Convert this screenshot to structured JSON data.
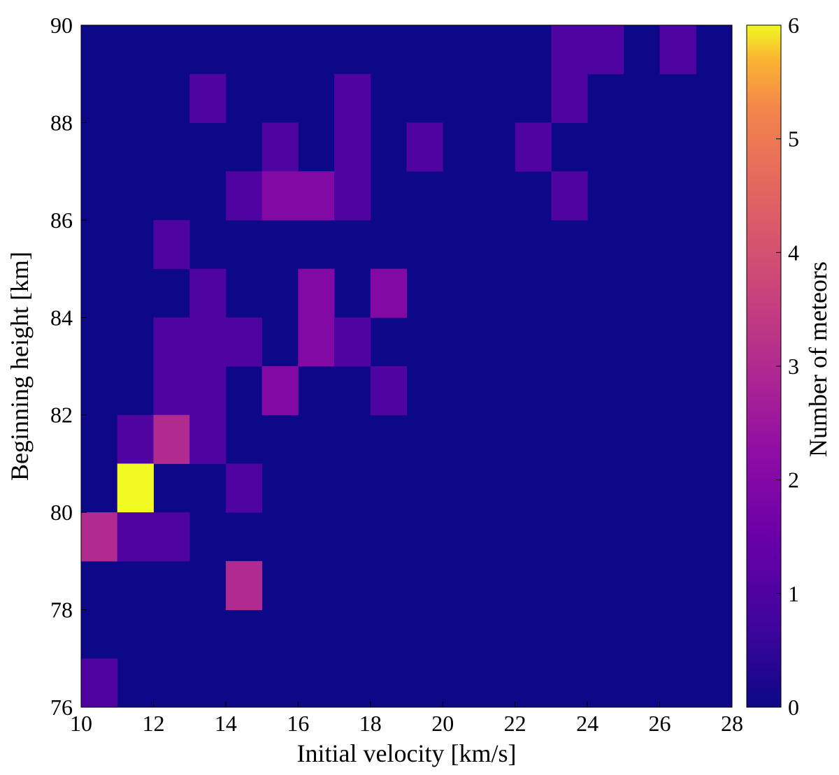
{
  "chart_data": {
    "type": "heatmap",
    "title": "",
    "xlabel": "Initial velocity [km/s]",
    "ylabel": "Beginning height [km]",
    "colorbar_label": "Number of meteors",
    "xlim": [
      10,
      28
    ],
    "ylim": [
      76,
      90
    ],
    "bin_width_x": 1,
    "bin_height_y": 1,
    "x_ticks": [
      "10",
      "12",
      "14",
      "16",
      "18",
      "20",
      "22",
      "24",
      "26",
      "28"
    ],
    "y_ticks": [
      "76",
      "78",
      "80",
      "82",
      "84",
      "86",
      "88",
      "90"
    ],
    "colorbar_ticks": [
      "0",
      "1",
      "2",
      "3",
      "4",
      "5",
      "6"
    ],
    "colorbar_range": [
      0,
      6
    ],
    "colormap": "plasma",
    "cells": [
      {
        "x": 23,
        "y": 89,
        "count": 1
      },
      {
        "x": 24,
        "y": 89,
        "count": 1
      },
      {
        "x": 26,
        "y": 89,
        "count": 1
      },
      {
        "x": 13,
        "y": 88,
        "count": 1
      },
      {
        "x": 17,
        "y": 88,
        "count": 1
      },
      {
        "x": 23,
        "y": 88,
        "count": 1
      },
      {
        "x": 15,
        "y": 87,
        "count": 1
      },
      {
        "x": 17,
        "y": 87,
        "count": 1
      },
      {
        "x": 19,
        "y": 87,
        "count": 1
      },
      {
        "x": 22,
        "y": 87,
        "count": 1
      },
      {
        "x": 14,
        "y": 86,
        "count": 1
      },
      {
        "x": 15,
        "y": 86,
        "count": 2
      },
      {
        "x": 16,
        "y": 86,
        "count": 2
      },
      {
        "x": 17,
        "y": 86,
        "count": 1
      },
      {
        "x": 23,
        "y": 86,
        "count": 1
      },
      {
        "x": 12,
        "y": 85,
        "count": 1
      },
      {
        "x": 13,
        "y": 84,
        "count": 1
      },
      {
        "x": 16,
        "y": 84,
        "count": 2
      },
      {
        "x": 18,
        "y": 84,
        "count": 2
      },
      {
        "x": 12,
        "y": 83,
        "count": 1
      },
      {
        "x": 13,
        "y": 83,
        "count": 1
      },
      {
        "x": 14,
        "y": 83,
        "count": 1
      },
      {
        "x": 16,
        "y": 83,
        "count": 2
      },
      {
        "x": 17,
        "y": 83,
        "count": 1
      },
      {
        "x": 12,
        "y": 82,
        "count": 1
      },
      {
        "x": 13,
        "y": 82,
        "count": 1
      },
      {
        "x": 15,
        "y": 82,
        "count": 2
      },
      {
        "x": 18,
        "y": 82,
        "count": 1
      },
      {
        "x": 11,
        "y": 81,
        "count": 1
      },
      {
        "x": 12,
        "y": 81,
        "count": 3
      },
      {
        "x": 13,
        "y": 81,
        "count": 1
      },
      {
        "x": 11,
        "y": 80,
        "count": 6
      },
      {
        "x": 14,
        "y": 80,
        "count": 1
      },
      {
        "x": 10,
        "y": 79,
        "count": 3
      },
      {
        "x": 11,
        "y": 79,
        "count": 1
      },
      {
        "x": 12,
        "y": 79,
        "count": 1
      },
      {
        "x": 14,
        "y": 78,
        "count": 3
      },
      {
        "x": 10,
        "y": 76,
        "count": 1
      }
    ]
  }
}
